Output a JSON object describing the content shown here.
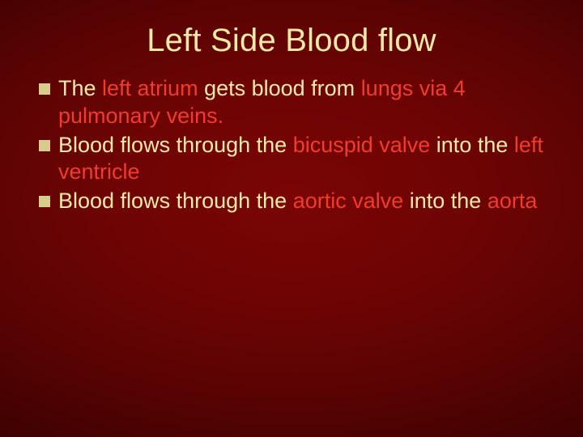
{
  "colors": {
    "title_color": "#f5e9a8",
    "body_color": "#f5e9a8",
    "highlight_color": "#f03c2d",
    "bullet_color": "#d7cc8e"
  },
  "title": "Left Side Blood flow",
  "bullets": [
    {
      "segments": [
        {
          "text": "The ",
          "hl": false
        },
        {
          "text": "left atrium ",
          "hl": true
        },
        {
          "text": "gets blood from ",
          "hl": false
        },
        {
          "text": "lungs via 4 pulmonary veins.",
          "hl": true
        }
      ]
    },
    {
      "segments": [
        {
          "text": "Blood flows through the ",
          "hl": false
        },
        {
          "text": "bicuspid valve ",
          "hl": true
        },
        {
          "text": "into the ",
          "hl": false
        },
        {
          "text": "left ventricle",
          "hl": true
        }
      ]
    },
    {
      "segments": [
        {
          "text": "Blood flows through the ",
          "hl": false
        },
        {
          "text": "aortic valve ",
          "hl": true
        },
        {
          "text": "into the ",
          "hl": false
        },
        {
          "text": "aorta",
          "hl": true
        }
      ]
    }
  ]
}
